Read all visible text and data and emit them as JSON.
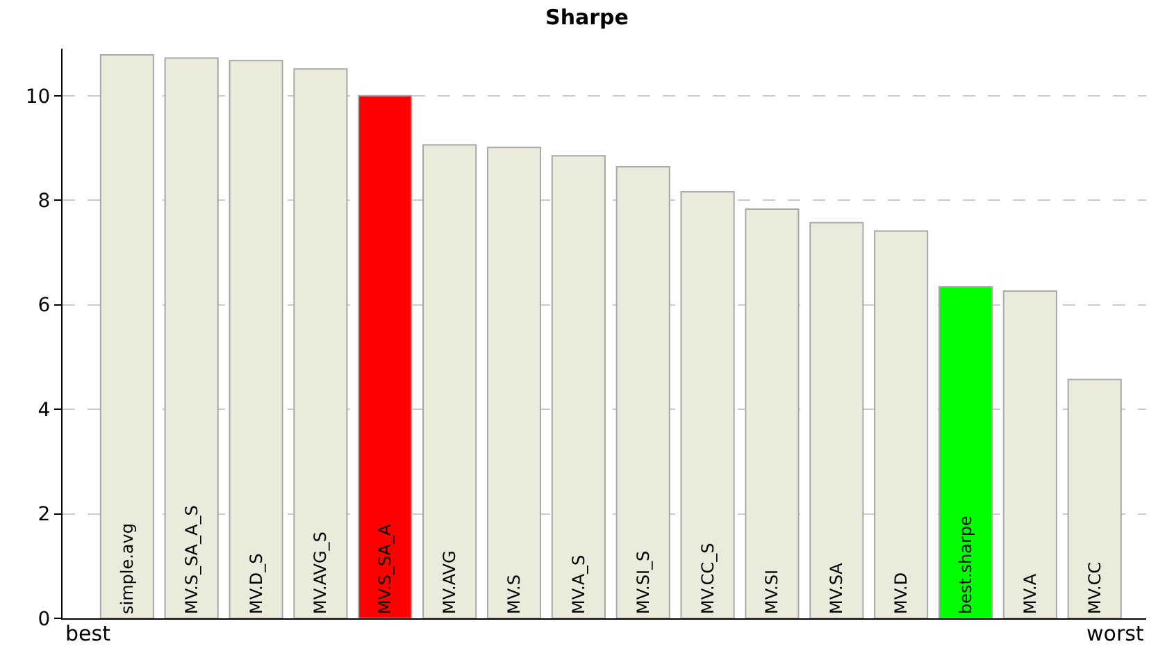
{
  "chart_data": {
    "type": "bar",
    "title": "Sharpe",
    "categories": [
      "simple.avg",
      "MV.S_SA_A_S",
      "MV.D_S",
      "MV.AVG_S",
      "MV.S_SA_A",
      "MV.AVG",
      "MV.S",
      "MV.A_S",
      "MV.SI_S",
      "MV.CC_S",
      "MV.SI",
      "MV.SA",
      "MV.D",
      "best.sharpe",
      "MV.A",
      "MV.CC"
    ],
    "values": [
      10.78,
      10.72,
      10.67,
      10.51,
      10.0,
      9.06,
      9.01,
      8.85,
      8.64,
      8.16,
      7.83,
      7.57,
      7.41,
      6.34,
      6.26,
      4.57
    ],
    "colors": [
      "#ebebdc",
      "#ebebdc",
      "#ebebdc",
      "#ebebdc",
      "#ff0000",
      "#ebebdc",
      "#ebebdc",
      "#ebebdc",
      "#ebebdc",
      "#ebebdc",
      "#ebebdc",
      "#ebebdc",
      "#ebebdc",
      "#00ff00",
      "#ebebdc",
      "#ebebdc"
    ],
    "ylim": [
      0,
      10.9
    ],
    "yticks": [
      0,
      2,
      4,
      6,
      8,
      10
    ],
    "grid": "y",
    "annotations": [
      "best",
      "worst"
    ]
  }
}
